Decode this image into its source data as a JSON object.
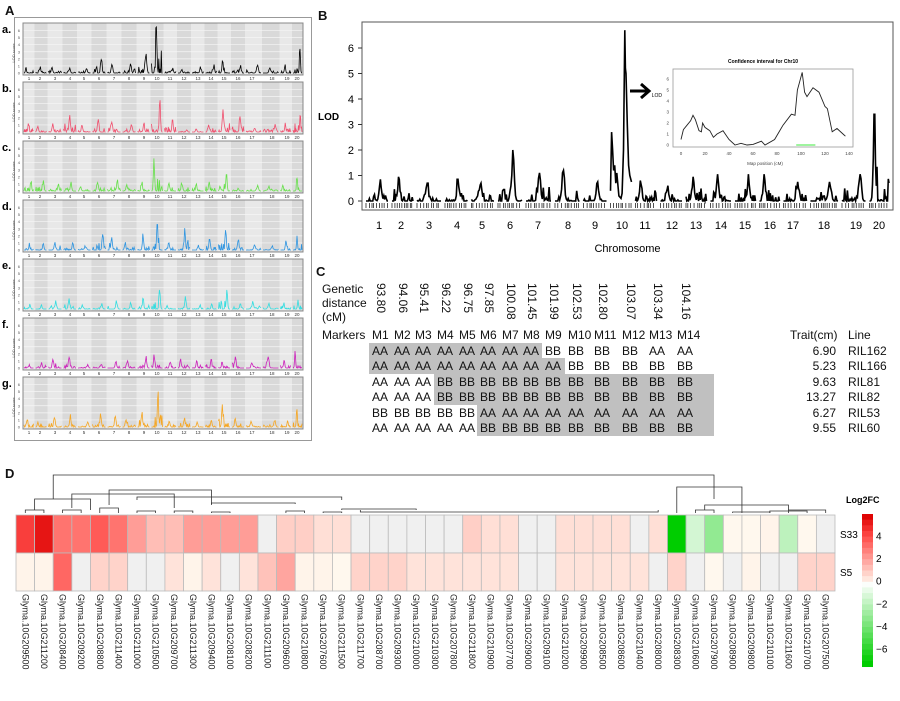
{
  "panel_labels": {
    "A": "A",
    "B": "B",
    "C": "C",
    "D": "D"
  },
  "chart_data": [
    {
      "panel": "A",
      "type": "line",
      "ylabel": "LOD score",
      "yticks": [
        0,
        1,
        2,
        3,
        4,
        5,
        6
      ],
      "ylim": [
        0,
        6.5
      ],
      "categories": [
        "1",
        "2",
        "3",
        "4",
        "5",
        "6",
        "7",
        "8",
        "9",
        "10",
        "11",
        "12",
        "13",
        "14",
        "15",
        "16",
        "17",
        "18",
        "19",
        "20"
      ],
      "note_values": "peak LOD per chromosome",
      "subpanels": [
        {
          "label": "a.",
          "color": "#000000",
          "peaks": [
            0.8,
            0.9,
            0.8,
            0.7,
            0.6,
            1.9,
            1.2,
            1.3,
            2.7,
            6.5,
            0.7,
            0.5,
            0.9,
            1.2,
            1.7,
            1.1,
            1.1,
            0.7,
            1.2,
            3.4
          ]
        },
        {
          "label": "b.",
          "color": "#f0506e",
          "peaks": [
            1.2,
            0.8,
            1.2,
            2.4,
            0.9,
            1.8,
            1.4,
            1.0,
            1.3,
            4.5,
            1.7,
            0.3,
            0.4,
            1.0,
            3.2,
            2.2,
            0.5,
            1.1,
            1.3,
            2.3
          ]
        },
        {
          "label": "c.",
          "color": "#66e04a",
          "peaks": [
            1.3,
            1.5,
            1.0,
            1.3,
            0.6,
            1.2,
            1.6,
            0.9,
            1.3,
            4.6,
            1.1,
            1.1,
            1.0,
            1.3,
            2.3,
            0.4,
            0.8,
            0.7,
            0.8,
            1.8
          ]
        },
        {
          "label": "d.",
          "color": "#2f95e0",
          "peaks": [
            1.0,
            0.9,
            1.1,
            1.0,
            0.6,
            2.2,
            1.8,
            1.1,
            2.3,
            3.6,
            1.0,
            3.1,
            0.7,
            1.5,
            2.8,
            1.4,
            0.7,
            0.6,
            1.3,
            2.0
          ]
        },
        {
          "label": "e.",
          "color": "#33dde0",
          "peaks": [
            0.7,
            0.6,
            1.2,
            1.5,
            0.6,
            0.8,
            1.2,
            0.9,
            1.5,
            2.7,
            0.5,
            1.8,
            0.6,
            0.7,
            2.7,
            0.7,
            1.1,
            0.8,
            0.9,
            1.3
          ]
        },
        {
          "label": "f.",
          "color": "#cc22bb",
          "peaks": [
            0.5,
            0.8,
            1.2,
            1.5,
            0.5,
            0.5,
            0.9,
            1.0,
            1.7,
            1.9,
            0.8,
            1.3,
            1.0,
            1.2,
            0.8,
            1.6,
            0.7,
            1.6,
            1.1,
            2.4
          ]
        },
        {
          "label": "g.",
          "color": "#f5a623",
          "peaks": [
            1.0,
            0.7,
            1.3,
            1.8,
            0.7,
            1.9,
            1.5,
            1.0,
            2.1,
            5.0,
            0.8,
            1.3,
            0.7,
            0.9,
            3.2,
            1.2,
            0.8,
            0.9,
            0.9,
            2.5
          ]
        }
      ]
    },
    {
      "panel": "B",
      "type": "line",
      "ylabel": "LOD",
      "xlabel": "Chromosome",
      "yticks": [
        0,
        1,
        2,
        3,
        4,
        5,
        6
      ],
      "ylim": [
        0,
        6.9
      ],
      "categories": [
        "1",
        "2",
        "3",
        "4",
        "5",
        "6",
        "7",
        "8",
        "9",
        "10",
        "11",
        "12",
        "13",
        "14",
        "15",
        "16",
        "17",
        "18",
        "19",
        "20"
      ],
      "peaks": [
        0.85,
        0.95,
        0.7,
        0.85,
        0.7,
        2.0,
        1.1,
        1.2,
        0.75,
        6.7,
        0.8,
        0.6,
        0.95,
        1.05,
        1.05,
        1.05,
        0.75,
        0.75,
        1.05,
        3.4
      ],
      "color": "#000000",
      "inset": {
        "title": "Confidence interval for Chr10",
        "ylabel": "LOD",
        "xlabel": "Map position (cM)",
        "xticks": [
          0,
          20,
          40,
          60,
          80,
          100,
          120,
          140
        ],
        "yticks": [
          0,
          1,
          2,
          3,
          4,
          5,
          6
        ],
        "xlim": [
          0,
          140
        ],
        "ylim": [
          0,
          6.6
        ],
        "points": [
          [
            0,
            0.5
          ],
          [
            2,
            1.4
          ],
          [
            5,
            1.8
          ],
          [
            8,
            2.2
          ],
          [
            10,
            2.7
          ],
          [
            12,
            2.3
          ],
          [
            15,
            1.3
          ],
          [
            17,
            1.2
          ],
          [
            18,
            2.0
          ],
          [
            20,
            1.6
          ],
          [
            24,
            1.3
          ],
          [
            27,
            0.7
          ],
          [
            30,
            1.0
          ],
          [
            35,
            1.3
          ],
          [
            40,
            0.5
          ],
          [
            45,
            0
          ],
          [
            50,
            0.15
          ],
          [
            55,
            0
          ],
          [
            60,
            0.05
          ],
          [
            67,
            0.35
          ],
          [
            70,
            0
          ],
          [
            78,
            0.5
          ],
          [
            85,
            1.8
          ],
          [
            92,
            2.8
          ],
          [
            95,
            2.7
          ],
          [
            97,
            5.0
          ],
          [
            99,
            5.8
          ],
          [
            101,
            6.6
          ],
          [
            103,
            4.8
          ],
          [
            105,
            4.4
          ],
          [
            110,
            5.2
          ],
          [
            115,
            4.8
          ],
          [
            120,
            3.5
          ],
          [
            122,
            3.3
          ],
          [
            126,
            1.2
          ],
          [
            130,
            1.5
          ],
          [
            135,
            1.0
          ],
          [
            137,
            0.8
          ]
        ],
        "ci": [
          96,
          112
        ],
        "ci_color": "#66ee66"
      }
    },
    {
      "panel": "D",
      "type": "heatmap",
      "legend_title": "Log2FC",
      "legend_ticks": [
        4,
        2,
        0,
        -2,
        -4,
        -6
      ],
      "rows": [
        "S33",
        "S5"
      ],
      "columns": [
        "Glyma.10G209500",
        "Glyma.10G211200",
        "Glyma.10G208400",
        "Glyma.10G209200",
        "Glyma.10G208800",
        "Glyma.10G211400",
        "Glyma.10G211000",
        "Glyma.10G210500",
        "Glyma.10G209700",
        "Glyma.10G211300",
        "Glyma.10G209400",
        "Glyma.10G208100",
        "Glyma.10G208200",
        "Glyma.10G211100",
        "Glyma.10G209600",
        "Glyma.10G210800",
        "Glyma.10G207600",
        "Glyma.10G211500",
        "Glyma.10G211700",
        "Glyma.10G208700",
        "Glyma.10G209300",
        "Glyma.10G210000",
        "Glyma.10G210300",
        "Glyma.10G207800",
        "Glyma.10G211800",
        "Glyma.10G210900",
        "Glyma.10G207700",
        "Glyma.10G209000",
        "Glyma.10G209100",
        "Glyma.10G210200",
        "Glyma.10G209900",
        "Glyma.10G208500",
        "Glyma.10G208600",
        "Glyma.10G210400",
        "Glyma.10G208000",
        "Glyma.10G208300",
        "Glyma.10G210600",
        "Glyma.10G207900",
        "Glyma.10G208900",
        "Glyma.10G209800",
        "Glyma.10G210100",
        "Glyma.10G211600",
        "Glyma.10G210700",
        "Glyma.10G207500"
      ],
      "values": [
        [
          4.5,
          5.5,
          3.2,
          3.2,
          3.8,
          3.2,
          2.2,
          1.4,
          1.4,
          2.2,
          2.2,
          2.2,
          2.2,
          null,
          1.0,
          1.0,
          0.6,
          0.6,
          null,
          null,
          null,
          null,
          null,
          null,
          1.0,
          0.6,
          0.6,
          null,
          null,
          0.6,
          0.6,
          0.6,
          0.6,
          null,
          0.6,
          -7.0,
          -1.2,
          -3.0,
          0,
          0,
          0.1,
          -1.8,
          0,
          null
        ],
        [
          0.1,
          0.1,
          3.5,
          null,
          0.9,
          0.9,
          null,
          null,
          0.5,
          0.1,
          0.5,
          null,
          0.5,
          1.3,
          2.0,
          0.1,
          0.1,
          0,
          0.9,
          0.9,
          0.9,
          0.5,
          0.5,
          0.5,
          0.5,
          0.5,
          0.5,
          null,
          null,
          0.5,
          0.5,
          0.5,
          0.5,
          0.5,
          null,
          0.9,
          null,
          0,
          null,
          0.1,
          null,
          null,
          0.9,
          0.9
        ]
      ]
    }
  ],
  "panel_C": {
    "distance_label": [
      "Genetic",
      "distance",
      "(cM)"
    ],
    "distances": [
      "93.80",
      "94.06",
      "95.41",
      "96.22",
      "96.75",
      "97.85",
      "100.08",
      "101.45",
      "101.99",
      "102.53",
      "102.80",
      "103.07",
      "103.34",
      "104.16"
    ],
    "markers_label": "Markers",
    "markers": [
      "M1",
      "M2",
      "M3",
      "M4",
      "M5",
      "M6",
      "M7",
      "M8",
      "M9",
      "M10",
      "M11",
      "M12",
      "M13",
      "M14"
    ],
    "trait_header": "Trait(cm)",
    "line_header": "Line",
    "shade_color": "#c0c0c0",
    "rows": [
      {
        "genotypes": [
          "AA",
          "AA",
          "AA",
          "AA",
          "AA",
          "AA",
          "AA",
          "AA",
          "BB",
          "BB",
          "BB",
          "BB",
          "AA",
          "AA"
        ],
        "trait": "6.90",
        "line": "RIL162",
        "shaded": [
          1,
          8
        ]
      },
      {
        "genotypes": [
          "AA",
          "AA",
          "AA",
          "AA",
          "AA",
          "AA",
          "AA",
          "AA",
          "AA",
          "BB",
          "BB",
          "BB",
          "BB",
          "BB"
        ],
        "trait": "5.23",
        "line": "RIL166",
        "shaded": [
          1,
          9
        ]
      },
      {
        "genotypes": [
          "AA",
          "AA",
          "AA",
          "BB",
          "BB",
          "BB",
          "BB",
          "BB",
          "BB",
          "BB",
          "BB",
          "BB",
          "BB",
          "BB"
        ],
        "trait": "9.63",
        "line": "RIL81",
        "shaded": [
          4,
          14
        ]
      },
      {
        "genotypes": [
          "AA",
          "AA",
          "AA",
          "BB",
          "BB",
          "BB",
          "BB",
          "BB",
          "BB",
          "BB",
          "BB",
          "BB",
          "BB",
          "BB"
        ],
        "trait": "13.27",
        "line": "RIL82",
        "shaded": [
          4,
          14
        ]
      },
      {
        "genotypes": [
          "BB",
          "BB",
          "BB",
          "BB",
          "BB",
          "AA",
          "AA",
          "AA",
          "AA",
          "AA",
          "AA",
          "AA",
          "AA",
          "AA"
        ],
        "trait": "6.27",
        "line": "RIL53",
        "shaded": [
          6,
          14
        ]
      },
      {
        "genotypes": [
          "AA",
          "AA",
          "AA",
          "AA",
          "AA",
          "BB",
          "BB",
          "BB",
          "BB",
          "BB",
          "BB",
          "BB",
          "BB",
          "BB"
        ],
        "trait": "9.55",
        "line": "RIL60",
        "shaded": [
          6,
          14
        ]
      }
    ]
  }
}
